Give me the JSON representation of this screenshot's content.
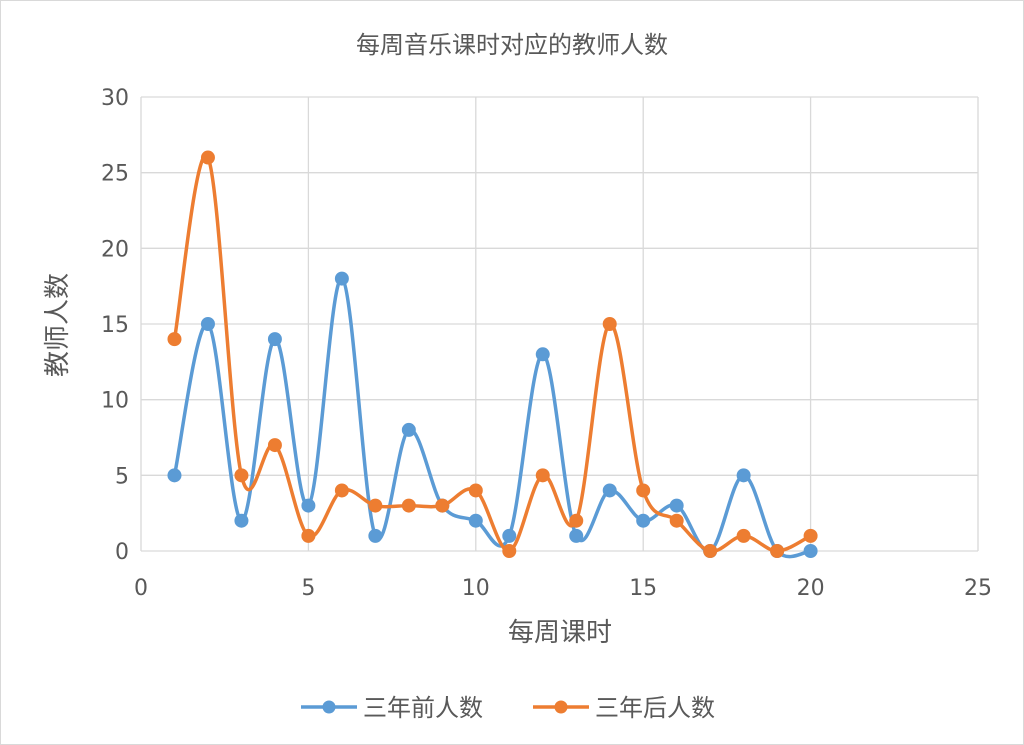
{
  "chart_data": {
    "type": "scatter",
    "title": "每周音乐课时对应的教师人数",
    "xlabel": "每周课时",
    "ylabel": "教师人数",
    "xlim": [
      0,
      25
    ],
    "ylim": [
      0,
      30
    ],
    "x_ticks": [
      0,
      5,
      10,
      15,
      20,
      25
    ],
    "y_ticks": [
      0,
      5,
      10,
      15,
      20,
      25,
      30
    ],
    "grid": true,
    "smooth_lines": true,
    "legend_position": "bottom",
    "series": [
      {
        "name": "三年前人数",
        "color": "#5b9bd5",
        "x": [
          1,
          2,
          3,
          4,
          5,
          6,
          7,
          8,
          9,
          10,
          11,
          12,
          13,
          14,
          15,
          16,
          17,
          18,
          19,
          20
        ],
        "y": [
          5,
          15,
          2,
          14,
          3,
          18,
          1,
          8,
          3,
          2,
          1,
          13,
          1,
          4,
          2,
          3,
          0,
          5,
          0,
          0
        ]
      },
      {
        "name": "三年后人数",
        "color": "#ed7d31",
        "x": [
          1,
          2,
          3,
          4,
          5,
          6,
          7,
          8,
          9,
          10,
          11,
          12,
          13,
          14,
          15,
          16,
          17,
          18,
          19,
          20
        ],
        "y": [
          14,
          26,
          5,
          7,
          1,
          4,
          3,
          3,
          3,
          4,
          0,
          5,
          2,
          15,
          4,
          2,
          0,
          1,
          0,
          1
        ]
      }
    ]
  }
}
